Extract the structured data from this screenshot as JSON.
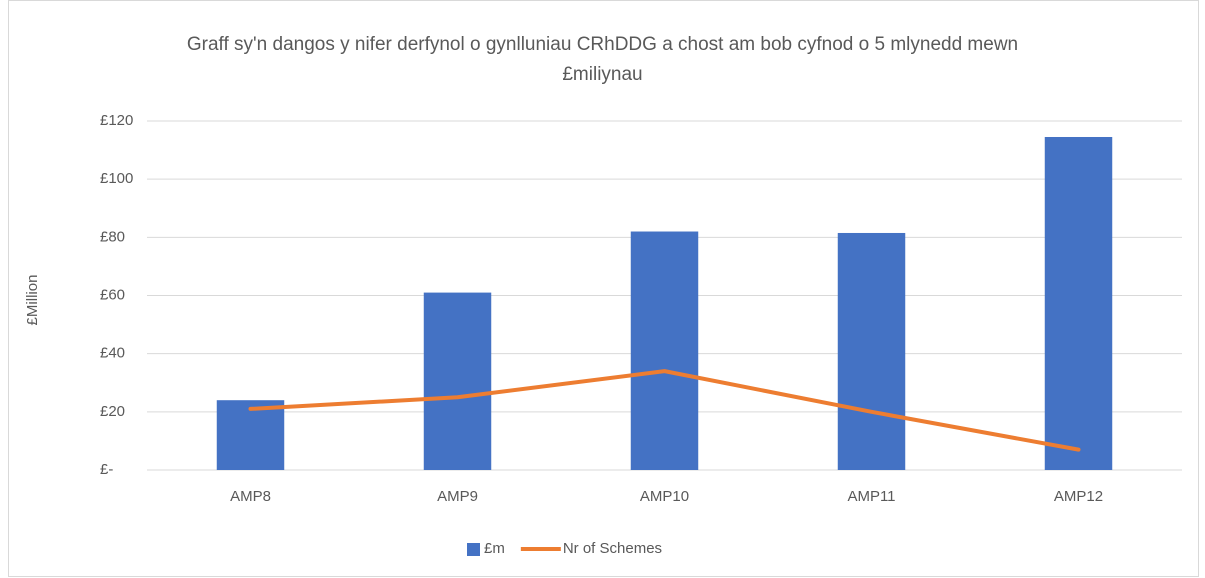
{
  "chart_data": {
    "type": "bar",
    "title": "Graff sy'n dangos y nifer derfynol o gynlluniau CRhDDG a chost am bob cyfnod o 5 mlynedd mewn £miliynau",
    "y_label": "£Million",
    "categories": [
      "AMP8",
      "AMP9",
      "AMP10",
      "AMP11",
      "AMP12"
    ],
    "series": [
      {
        "name": "£m",
        "type": "bar",
        "color": "#4472c4",
        "values": [
          24,
          61,
          82,
          81.5,
          114.5
        ]
      },
      {
        "name": "Nr of Schemes",
        "type": "line",
        "color": "#ed7d31",
        "values": [
          21,
          25,
          34,
          20,
          7
        ]
      }
    ],
    "ylim": [
      0,
      120
    ],
    "yticks": [
      {
        "value": 0,
        "label": "£-"
      },
      {
        "value": 20,
        "label": "£20"
      },
      {
        "value": 40,
        "label": "£40"
      },
      {
        "value": 60,
        "label": "£60"
      },
      {
        "value": 80,
        "label": "£80"
      },
      {
        "value": 100,
        "label": "£100"
      },
      {
        "value": 120,
        "label": "£120"
      }
    ],
    "grid": true,
    "legend": "bottom"
  }
}
